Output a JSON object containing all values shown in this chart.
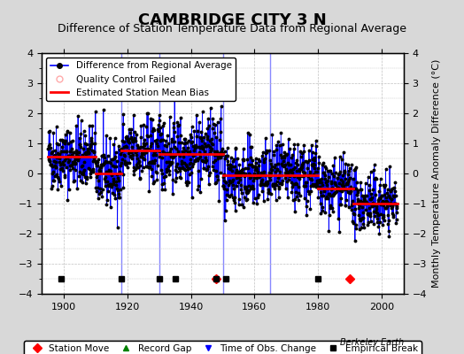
{
  "title": "CAMBRIDGE CITY 3 N",
  "subtitle": "Difference of Station Temperature Data from Regional Average",
  "ylabel": "Monthly Temperature Anomaly Difference (°C)",
  "xlim": [
    1893,
    2007
  ],
  "ylim": [
    -4,
    4
  ],
  "yticks": [
    -4,
    -3,
    -2,
    -1,
    0,
    1,
    2,
    3,
    4
  ],
  "xticks": [
    1900,
    1920,
    1940,
    1960,
    1980,
    2000
  ],
  "bg_color": "#e8e8e8",
  "plot_bg_color": "#ffffff",
  "grid_color": "#c0c0c0",
  "line_color": "#0000ff",
  "marker_color": "#000000",
  "bias_color": "#ff0000",
  "vline_color": "#8888ff",
  "seed": 42,
  "n_points": 1320,
  "start_year": 1895,
  "end_year": 2005,
  "segments": [
    {
      "start": 1895,
      "end": 1910,
      "mean": 0.55,
      "std": 0.55
    },
    {
      "start": 1910,
      "end": 1918,
      "mean": 0.0,
      "std": 0.55
    },
    {
      "start": 1918,
      "end": 1930,
      "mean": 0.7,
      "std": 0.6
    },
    {
      "start": 1930,
      "end": 1950,
      "mean": 0.7,
      "std": 0.6
    },
    {
      "start": 1950,
      "end": 1965,
      "mean": -0.1,
      "std": 0.55
    },
    {
      "start": 1965,
      "end": 1980,
      "mean": -0.05,
      "std": 0.55
    },
    {
      "start": 1980,
      "end": 1991,
      "mean": -0.5,
      "std": 0.5
    },
    {
      "start": 1991,
      "end": 2005,
      "mean": -1.0,
      "std": 0.5
    }
  ],
  "bias_segments": [
    {
      "start": 1895,
      "end": 1910,
      "value": 0.55
    },
    {
      "start": 1910,
      "end": 1918,
      "value": 0.0
    },
    {
      "start": 1918,
      "end": 1930,
      "value": 0.75
    },
    {
      "start": 1930,
      "end": 1950,
      "value": 0.65
    },
    {
      "start": 1950,
      "end": 1965,
      "value": -0.05
    },
    {
      "start": 1965,
      "end": 1980,
      "value": -0.05
    },
    {
      "start": 1980,
      "end": 1991,
      "value": -0.5
    },
    {
      "start": 1991,
      "end": 2005,
      "value": -1.0
    }
  ],
  "vlines": [
    1918,
    1930,
    1950,
    1965
  ],
  "station_moves": [
    1948,
    1990
  ],
  "record_gaps": [],
  "obs_changes": [],
  "empirical_breaks": [
    1899,
    1918,
    1930,
    1935,
    1948,
    1951,
    1980
  ],
  "watermark": "Berkeley Earth",
  "title_fontsize": 13,
  "subtitle_fontsize": 9,
  "label_fontsize": 8,
  "tick_fontsize": 8,
  "legend_fontsize": 7.5
}
